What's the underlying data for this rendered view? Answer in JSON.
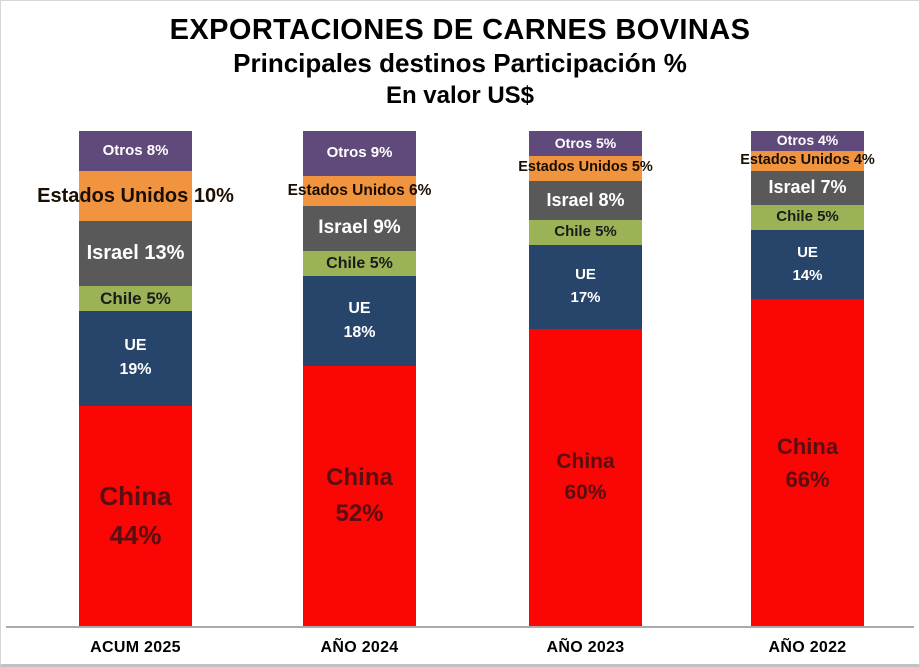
{
  "title": {
    "line1": "EXPORTACIONES DE CARNES BOVINAS",
    "line2": "Principales destinos Participación %",
    "line3": "En valor US$"
  },
  "chart_data": {
    "type": "bar",
    "variant": "100%-stacked-column",
    "title": "EXPORTACIONES DE CARNES BOVINAS",
    "subtitle": "Principales destinos Participación %",
    "unit_note": "En valor US$",
    "categories": [
      "ACUM 2025",
      "AÑO 2024",
      "AÑO 2023",
      "AÑO 2022"
    ],
    "series": [
      {
        "name": "China",
        "values": [
          44,
          52,
          60,
          66
        ]
      },
      {
        "name": "UE",
        "values": [
          19,
          18,
          17,
          14
        ]
      },
      {
        "name": "Chile",
        "values": [
          5,
          5,
          5,
          5
        ]
      },
      {
        "name": "Israel",
        "values": [
          13,
          9,
          8,
          7
        ]
      },
      {
        "name": "Estados Unidos",
        "values": [
          10,
          6,
          5,
          4
        ]
      },
      {
        "name": "Otros",
        "values": [
          8,
          9,
          5,
          4
        ]
      }
    ],
    "stack_order_top_to_bottom": [
      "Otros",
      "Estados Unidos",
      "Israel",
      "Chile",
      "UE",
      "China"
    ],
    "ylim": [
      0,
      100
    ],
    "grid": false,
    "legend_position": "none",
    "bars": [
      {
        "category": "ACUM 2025",
        "segments": [
          {
            "name": "Otros",
            "value": 8,
            "label": [
              "Otros 8%"
            ]
          },
          {
            "name": "Estados Unidos",
            "value": 10,
            "label": [
              "Estados Unidos 10%"
            ]
          },
          {
            "name": "Israel",
            "value": 13,
            "label": [
              "Israel 13%"
            ]
          },
          {
            "name": "Chile",
            "value": 5,
            "label": [
              "Chile 5%"
            ]
          },
          {
            "name": "UE",
            "value": 19,
            "label": [
              "UE",
              "19%"
            ]
          },
          {
            "name": "China",
            "value": 44,
            "label": [
              "China",
              "44%"
            ]
          }
        ]
      },
      {
        "category": "AÑO 2024",
        "segments": [
          {
            "name": "Otros",
            "value": 9,
            "label": [
              "Otros 9%"
            ]
          },
          {
            "name": "Estados Unidos",
            "value": 6,
            "label": [
              "Estados Unidos 6%"
            ]
          },
          {
            "name": "Israel",
            "value": 9,
            "label": [
              "Israel 9%"
            ]
          },
          {
            "name": "Chile",
            "value": 5,
            "label": [
              "Chile 5%"
            ]
          },
          {
            "name": "UE",
            "value": 18,
            "label": [
              "UE",
              "18%"
            ]
          },
          {
            "name": "China",
            "value": 52,
            "label": [
              "China",
              "52%"
            ]
          }
        ]
      },
      {
        "category": "AÑO 2023",
        "segments": [
          {
            "name": "Otros",
            "value": 5,
            "label": [
              "Otros 5%"
            ]
          },
          {
            "name": "Estados Unidos",
            "value": 5,
            "label": [
              "Estados Unidos 5%"
            ]
          },
          {
            "name": "Israel",
            "value": 8,
            "label": [
              "Israel 8%"
            ]
          },
          {
            "name": "Chile",
            "value": 5,
            "label": [
              "Chile 5%"
            ]
          },
          {
            "name": "UE",
            "value": 17,
            "label": [
              "UE",
              "17%"
            ]
          },
          {
            "name": "China",
            "value": 60,
            "label": [
              "China",
              "60%"
            ]
          }
        ]
      },
      {
        "category": "AÑO 2022",
        "segments": [
          {
            "name": "Otros",
            "value": 4,
            "label": [
              "Otros 4%"
            ]
          },
          {
            "name": "Estados Unidos",
            "value": 4,
            "label": [
              "Estados Unidos 4%"
            ]
          },
          {
            "name": "Israel",
            "value": 7,
            "label": [
              "Israel 7%"
            ]
          },
          {
            "name": "Chile",
            "value": 5,
            "label": [
              "Chile 5%"
            ]
          },
          {
            "name": "UE",
            "value": 14,
            "label": [
              "UE",
              "14%"
            ]
          },
          {
            "name": "China",
            "value": 66,
            "label": [
              "China",
              "66%"
            ]
          }
        ]
      }
    ],
    "colors": {
      "China": {
        "fill": "#FB0505",
        "text": "#5A0E10"
      },
      "UE": {
        "fill": "#27456A",
        "text": "#FFFFFF"
      },
      "Chile": {
        "fill": "#9BB356",
        "text": "#1B1B1B"
      },
      "Israel": {
        "fill": "#595959",
        "text": "#FFFFFF"
      },
      "Estados Unidos": {
        "fill": "#F09440",
        "text": "#1A0E00"
      },
      "Otros": {
        "fill": "#5F4A7B",
        "text": "#FFFFFF"
      },
      "axis_line": "#AAAAAA",
      "title_text": "#000000"
    }
  }
}
